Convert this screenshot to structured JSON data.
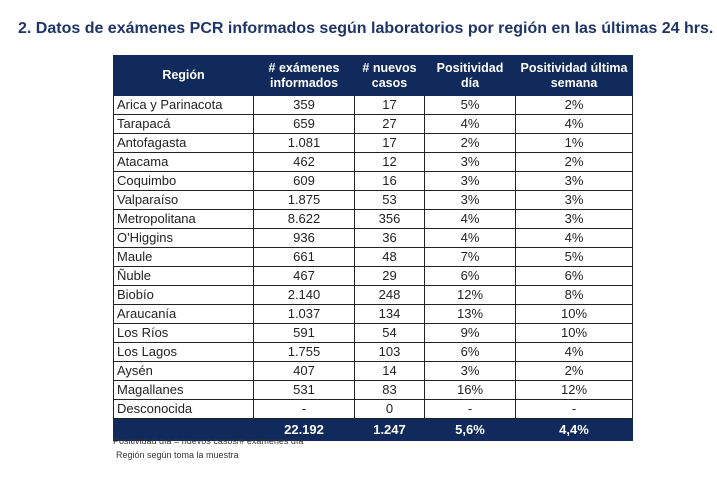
{
  "title": "2.  Datos de exámenes PCR informados según laboratorios por región en las últimas 24 hrs.",
  "headers": [
    "Región",
    "# exámenes informados",
    "# nuevos casos",
    "Positividad día",
    "Positividad última semana"
  ],
  "rows": [
    [
      "Arica y Parinacota",
      "359",
      "17",
      "5%",
      "2%"
    ],
    [
      "Tarapacá",
      "659",
      "27",
      "4%",
      "4%"
    ],
    [
      "Antofagasta",
      "1.081",
      "17",
      "2%",
      "1%"
    ],
    [
      "Atacama",
      "462",
      "12",
      "3%",
      "2%"
    ],
    [
      "Coquimbo",
      "609",
      "16",
      "3%",
      "3%"
    ],
    [
      "Valparaíso",
      "1.875",
      "53",
      "3%",
      "3%"
    ],
    [
      "Metropolitana",
      "8.622",
      "356",
      "4%",
      "3%"
    ],
    [
      "O'Higgins",
      "936",
      "36",
      "4%",
      "4%"
    ],
    [
      "Maule",
      "661",
      "48",
      "7%",
      "5%"
    ],
    [
      "Ñuble",
      "467",
      "29",
      "6%",
      "6%"
    ],
    [
      "Biobío",
      "2.140",
      "248",
      "12%",
      "8%"
    ],
    [
      "Araucanía",
      "1.037",
      "134",
      "13%",
      "10%"
    ],
    [
      "Los Ríos",
      "591",
      "54",
      "9%",
      "10%"
    ],
    [
      "Los Lagos",
      "1.755",
      "103",
      "6%",
      "4%"
    ],
    [
      "Aysén",
      "407",
      "14",
      "3%",
      "2%"
    ],
    [
      "Magallanes",
      "531",
      "83",
      "16%",
      "12%"
    ],
    [
      "Desconocida",
      "-",
      "0",
      "-",
      "-"
    ]
  ],
  "total": [
    "",
    "22.192",
    "1.247",
    "5,6%",
    "4,4%"
  ],
  "notes": [
    "Positividad día = nuevos casos/# exámenes día",
    "Región según toma la muestra"
  ],
  "colors": {
    "header": "#102a5c",
    "title": "#1f3468"
  }
}
